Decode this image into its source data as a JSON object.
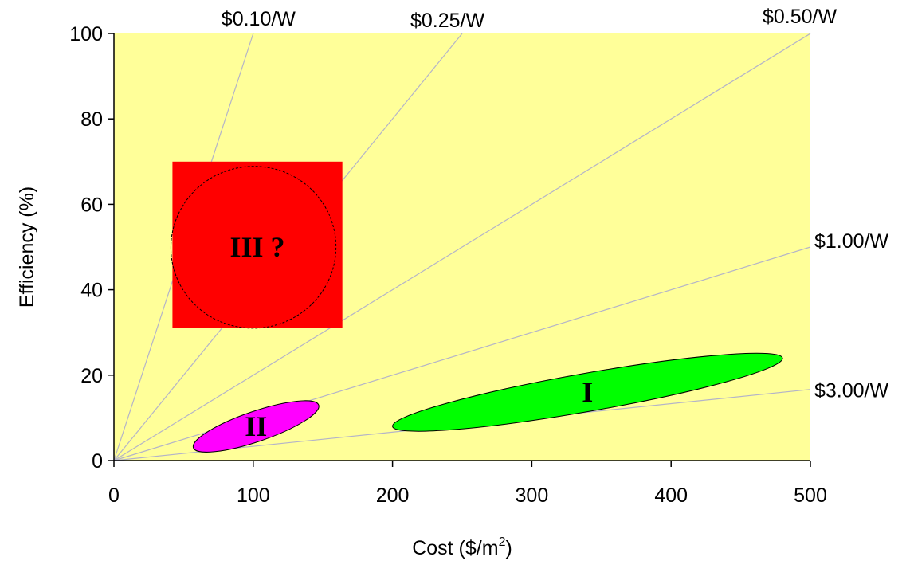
{
  "chart_data": {
    "type": "scatter",
    "xlabel_main": "Cost ($/m",
    "xlabel_sup": "2",
    "xlabel_tail": ")",
    "ylabel": "Efficiency (%)",
    "xlim": [
      0,
      500
    ],
    "ylim": [
      0,
      100
    ],
    "x_ticks": [
      0,
      100,
      200,
      300,
      400,
      500
    ],
    "y_ticks": [
      0,
      20,
      40,
      60,
      80,
      100
    ],
    "grid": false,
    "background_color": "#ffff99",
    "line_color": "#b4b4c8",
    "cost_per_watt_lines": [
      {
        "label": "$0.10/W",
        "rate": 0.1
      },
      {
        "label": "$0.25/W",
        "rate": 0.25
      },
      {
        "label": "$0.50/W",
        "rate": 0.5
      },
      {
        "label": "$1.00/W",
        "rate": 1.0
      },
      {
        "label": "$3.00/W",
        "rate": 3.0
      }
    ],
    "regions": [
      {
        "label": "I",
        "shape": "ellipse",
        "color": "#00ff00",
        "x_range": [
          200,
          480
        ],
        "y_range": [
          8,
          24
        ],
        "center": [
          340,
          16
        ]
      },
      {
        "label": "II",
        "shape": "ellipse",
        "color": "#ff00ff",
        "x_range": [
          57,
          147
        ],
        "y_range": [
          3,
          13
        ],
        "center": [
          102,
          8
        ]
      },
      {
        "label": "III ?",
        "shape": "rectangle",
        "color": "#ff0000",
        "x_range": [
          42,
          164
        ],
        "y_range": [
          31,
          70
        ],
        "center": [
          103,
          50
        ]
      }
    ]
  }
}
